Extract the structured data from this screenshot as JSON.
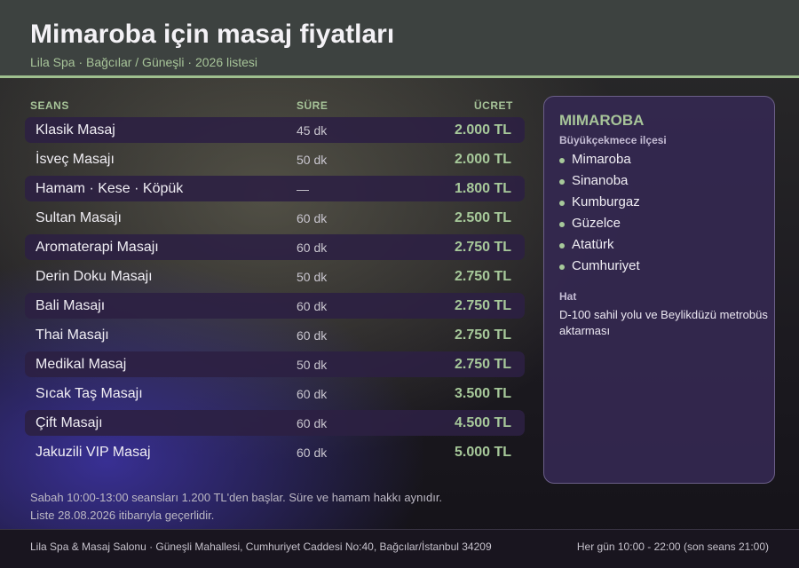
{
  "header": {
    "title": "Mimaroba için masaj fiyatları",
    "subtitle": "Lila Spa · Bağcılar / Güneşli · 2026 listesi"
  },
  "colors": {
    "accent": "#a7c499",
    "header_bg": "#3d4240",
    "panel_bg": "#342850"
  },
  "table": {
    "headers": {
      "session": "SEANS",
      "duration": "SÜRE",
      "price": "ÜCRET"
    },
    "rows": [
      {
        "name": "Klasik Masaj",
        "duration": "45 dk",
        "price": "2.000 TL"
      },
      {
        "name": "İsveç Masajı",
        "duration": "50 dk",
        "price": "2.000 TL"
      },
      {
        "name": "Hamam · Kese · Köpük",
        "duration": "—",
        "price": "1.800 TL"
      },
      {
        "name": "Sultan Masajı",
        "duration": "60 dk",
        "price": "2.500 TL"
      },
      {
        "name": "Aromaterapi Masajı",
        "duration": "60 dk",
        "price": "2.750 TL"
      },
      {
        "name": "Derin Doku Masajı",
        "duration": "50 dk",
        "price": "2.750 TL"
      },
      {
        "name": "Bali Masajı",
        "duration": "60 dk",
        "price": "2.750 TL"
      },
      {
        "name": "Thai Masajı",
        "duration": "60 dk",
        "price": "2.750 TL"
      },
      {
        "name": "Medikal Masaj",
        "duration": "50 dk",
        "price": "2.750 TL"
      },
      {
        "name": "Sıcak Taş Masajı",
        "duration": "60 dk",
        "price": "3.500 TL"
      },
      {
        "name": "Çift Masajı",
        "duration": "60 dk",
        "price": "4.500 TL"
      },
      {
        "name": "Jakuzili VIP Masaj",
        "duration": "60 dk",
        "price": "5.000 TL"
      }
    ]
  },
  "panel": {
    "title": "MIMAROBA",
    "subtitle": "Büyükçekmece ilçesi",
    "neighborhoods": [
      "Mimaroba",
      "Sinanoba",
      "Kumburgaz",
      "Güzelce",
      "Atatürk",
      "Cumhuriyet"
    ],
    "hat_label": "Hat",
    "hat_text": "D-100 sahil yolu ve Beylikdüzü metrobüs aktarması"
  },
  "note": {
    "line1": "Sabah 10:00-13:00 seansları 1.200 TL'den başlar. Süre ve hamam hakkı aynıdır.",
    "line2": "Liste 28.08.2026 itibarıyla geçerlidir."
  },
  "footer": {
    "address": "Lila Spa & Masaj Salonu · Güneşli Mahallesi, Cumhuriyet Caddesi No:40, Bağcılar/İstanbul 34209",
    "hours": "Her gün 10:00 - 22:00 (son seans 21:00)"
  }
}
